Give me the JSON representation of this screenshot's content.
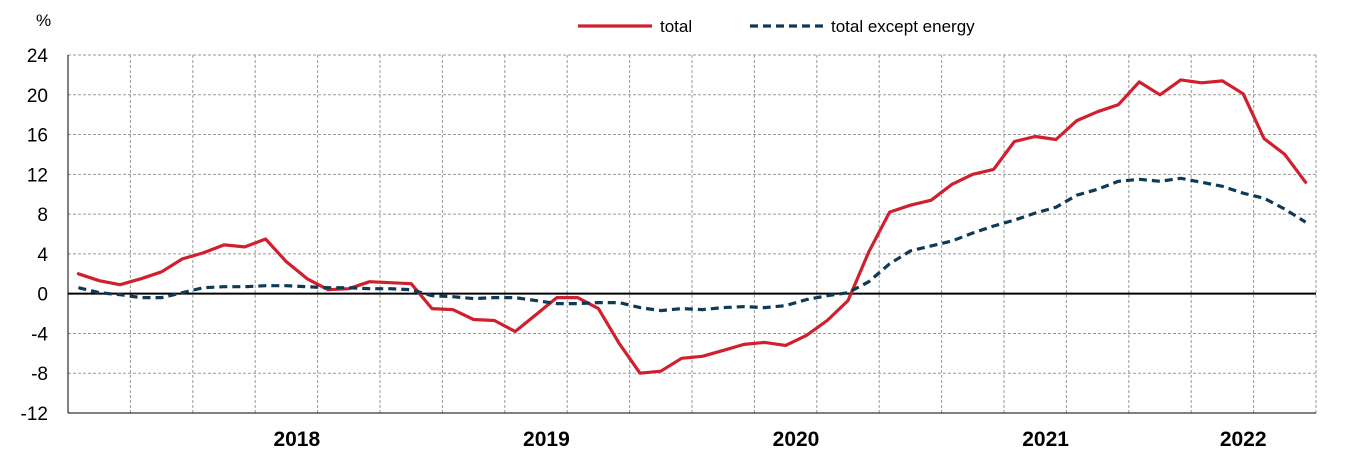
{
  "chart_data": {
    "type": "line",
    "y_unit_label": "%",
    "ylim": [
      -12,
      24
    ],
    "y_ticks": [
      "24",
      "20",
      "16",
      "12",
      "8",
      "4",
      "0",
      "-4",
      "-8",
      "-12"
    ],
    "x_year_labels": [
      "2018",
      "2019",
      "2020",
      "2021",
      "2022"
    ],
    "x_start": "2017-08",
    "x_end": "2022-12",
    "grid": true,
    "legend_position": "top-center",
    "series": [
      {
        "name": "total",
        "color": "#d0202e",
        "style": "solid",
        "values": [
          2.0,
          1.3,
          0.9,
          1.5,
          2.2,
          3.5,
          4.1,
          4.9,
          4.7,
          5.5,
          3.2,
          1.5,
          0.4,
          0.5,
          1.2,
          1.1,
          1.0,
          -1.5,
          -1.6,
          -2.6,
          -2.7,
          -3.8,
          -2.1,
          -0.4,
          -0.4,
          -1.5,
          -5.0,
          -8.0,
          -7.8,
          -6.5,
          -6.3,
          -5.7,
          -5.1,
          -4.9,
          -5.2,
          -4.2,
          -2.7,
          -0.7,
          4.2,
          8.2,
          8.9,
          9.4,
          11.0,
          12.0,
          12.5,
          15.3,
          15.8,
          15.5,
          17.4,
          18.3,
          19.0,
          21.3,
          20.0,
          21.5,
          21.2,
          21.4,
          20.1,
          15.6,
          14.0,
          11.2
        ]
      },
      {
        "name": "total except energy",
        "color": "#0d3b57",
        "style": "dashed",
        "values": [
          0.6,
          0.1,
          -0.1,
          -0.4,
          -0.4,
          0.1,
          0.6,
          0.7,
          0.7,
          0.8,
          0.8,
          0.7,
          0.6,
          0.6,
          0.5,
          0.5,
          0.4,
          -0.2,
          -0.3,
          -0.5,
          -0.4,
          -0.4,
          -0.7,
          -1.0,
          -1.0,
          -0.9,
          -0.9,
          -1.4,
          -1.7,
          -1.5,
          -1.6,
          -1.4,
          -1.3,
          -1.4,
          -1.2,
          -0.6,
          -0.2,
          0.1,
          1.2,
          3.0,
          4.3,
          4.8,
          5.3,
          6.1,
          6.8,
          7.4,
          8.1,
          8.7,
          9.9,
          10.5,
          11.3,
          11.5,
          11.3,
          11.6,
          11.2,
          10.8,
          10.1,
          9.6,
          8.5,
          7.2
        ]
      }
    ]
  }
}
